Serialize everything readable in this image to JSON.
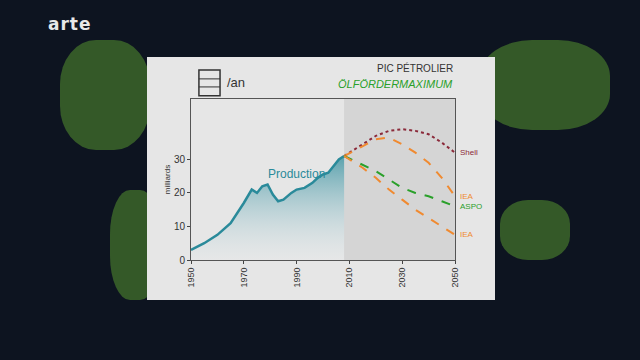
{
  "logo": "arte",
  "chart_data": {
    "type": "line",
    "title": "PIC PÉTROLIER",
    "subtitle": "ÖLFÖRDERMAXIMUM",
    "y_label": "milliards",
    "y_unit": "/an",
    "xlim": [
      1950,
      2050
    ],
    "xticks": [
      1950,
      1970,
      1990,
      2010,
      2030,
      2050
    ],
    "ylim": [
      0,
      48
    ],
    "yticks": [
      0,
      10,
      20,
      30
    ],
    "grid": false,
    "series": [
      {
        "name": "Production",
        "color": "#2a8a9a",
        "line_style": "solid",
        "x": [
          1950,
          1955,
          1960,
          1965,
          1970,
          1973,
          1975,
          1977,
          1979,
          1981,
          1983,
          1985,
          1988,
          1990,
          1993,
          1996,
          1998,
          2000,
          2002,
          2004,
          2006,
          2008
        ],
        "values": [
          3,
          5,
          7.5,
          11,
          17,
          21,
          20,
          22,
          22.5,
          19.5,
          17.5,
          18,
          20,
          21,
          21.5,
          23,
          24.5,
          25.5,
          26,
          28,
          30,
          31
        ]
      },
      {
        "name": "Shell",
        "color": "#8b2a3a",
        "line_style": "dot",
        "x": [
          2008,
          2015,
          2020,
          2025,
          2030,
          2035,
          2040,
          2045,
          2050
        ],
        "values": [
          31,
          34.5,
          37,
          38.5,
          39,
          38.5,
          37.5,
          35,
          32
        ]
      },
      {
        "name": "IEA",
        "color": "#f08a30",
        "line_style": "dash",
        "x": [
          2008,
          2015,
          2020,
          2025,
          2030,
          2035,
          2040,
          2045,
          2050
        ],
        "values": [
          31,
          34,
          36,
          36.5,
          34.5,
          32,
          29,
          24.5,
          19
        ]
      },
      {
        "name": "ASPO",
        "color": "#2aa02a",
        "line_style": "dash",
        "x": [
          2008,
          2015,
          2020,
          2025,
          2030,
          2035,
          2040,
          2045,
          2050
        ],
        "values": [
          31,
          28.5,
          26.5,
          24,
          21.5,
          20,
          19,
          17.5,
          16
        ]
      },
      {
        "name": "IEA",
        "color": "#f08a30",
        "line_style": "dash",
        "x": [
          2008,
          2015,
          2020,
          2025,
          2030,
          2035,
          2040,
          2045,
          2050
        ],
        "values": [
          31,
          27.5,
          24.5,
          21,
          18,
          15,
          12.5,
          10,
          7.5
        ]
      }
    ]
  }
}
